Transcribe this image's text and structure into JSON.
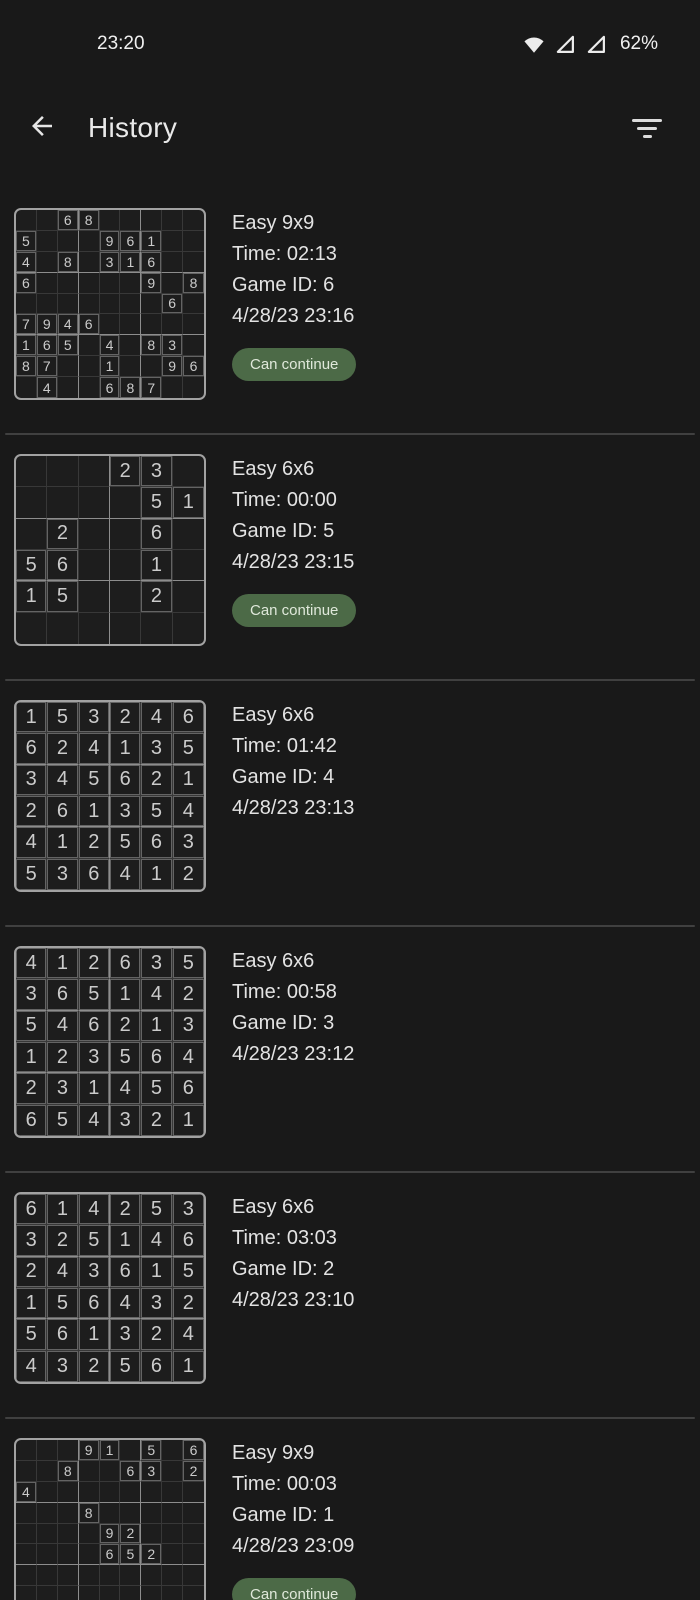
{
  "status_bar": {
    "time": "23:20",
    "battery": "62%"
  },
  "header": {
    "title": "History"
  },
  "colors": {
    "background": "#191919",
    "badge_green": "#4c6a47",
    "badge_text": "#dfe8da",
    "grid_line": "#383838",
    "grid_box_line": "#8d8d8d",
    "grid_border": "#a2a2a2",
    "text": "#e3e3e3"
  },
  "entries": [
    {
      "title": "Easy 9x9",
      "time": "Time: 02:13",
      "game_id": "Game ID: 6",
      "date": "4/28/23 23:16",
      "badge": "Can continue",
      "size": 9,
      "grid": [
        [
          "",
          "",
          "6",
          "8",
          "",
          "",
          "",
          "",
          ""
        ],
        [
          "5",
          "",
          "",
          "",
          "9",
          "6",
          "1",
          "",
          ""
        ],
        [
          "4",
          "",
          "8",
          "",
          "3",
          "1",
          "6",
          "",
          ""
        ],
        [
          "6",
          "",
          "",
          "",
          "",
          "",
          "9",
          "",
          "8"
        ],
        [
          "",
          "",
          "",
          "",
          "",
          "",
          "",
          "6",
          ""
        ],
        [
          "7",
          "9",
          "4",
          "6",
          "",
          "",
          "",
          "",
          ""
        ],
        [
          "1",
          "6",
          "5",
          "",
          "4",
          "",
          "8",
          "3",
          ""
        ],
        [
          "8",
          "7",
          "",
          "",
          "1",
          "",
          "",
          "9",
          "6"
        ],
        [
          "",
          "4",
          "",
          "",
          "6",
          "8",
          "7",
          "",
          ""
        ]
      ]
    },
    {
      "title": "Easy 6x6",
      "time": "Time: 00:00",
      "game_id": "Game ID: 5",
      "date": "4/28/23 23:15",
      "badge": "Can continue",
      "size": 6,
      "grid": [
        [
          "",
          "",
          "",
          "2",
          "3",
          ""
        ],
        [
          "",
          "",
          "",
          "",
          "5",
          "1"
        ],
        [
          "",
          "2",
          "",
          "",
          "6",
          ""
        ],
        [
          "5",
          "6",
          "",
          "",
          "1",
          ""
        ],
        [
          "1",
          "5",
          "",
          "",
          "2",
          ""
        ],
        [
          "",
          "",
          "",
          "",
          "",
          ""
        ]
      ]
    },
    {
      "title": "Easy 6x6",
      "time": "Time: 01:42",
      "game_id": "Game ID: 4",
      "date": "4/28/23 23:13",
      "badge": null,
      "size": 6,
      "grid": [
        [
          "1",
          "5",
          "3",
          "2",
          "4",
          "6"
        ],
        [
          "6",
          "2",
          "4",
          "1",
          "3",
          "5"
        ],
        [
          "3",
          "4",
          "5",
          "6",
          "2",
          "1"
        ],
        [
          "2",
          "6",
          "1",
          "3",
          "5",
          "4"
        ],
        [
          "4",
          "1",
          "2",
          "5",
          "6",
          "3"
        ],
        [
          "5",
          "3",
          "6",
          "4",
          "1",
          "2"
        ]
      ]
    },
    {
      "title": "Easy 6x6",
      "time": "Time: 00:58",
      "game_id": "Game ID: 3",
      "date": "4/28/23 23:12",
      "badge": null,
      "size": 6,
      "grid": [
        [
          "4",
          "1",
          "2",
          "6",
          "3",
          "5"
        ],
        [
          "3",
          "6",
          "5",
          "1",
          "4",
          "2"
        ],
        [
          "5",
          "4",
          "6",
          "2",
          "1",
          "3"
        ],
        [
          "1",
          "2",
          "3",
          "5",
          "6",
          "4"
        ],
        [
          "2",
          "3",
          "1",
          "4",
          "5",
          "6"
        ],
        [
          "6",
          "5",
          "4",
          "3",
          "2",
          "1"
        ]
      ]
    },
    {
      "title": "Easy 6x6",
      "time": "Time: 03:03",
      "game_id": "Game ID: 2",
      "date": "4/28/23 23:10",
      "badge": null,
      "size": 6,
      "grid": [
        [
          "6",
          "1",
          "4",
          "2",
          "5",
          "3"
        ],
        [
          "3",
          "2",
          "5",
          "1",
          "4",
          "6"
        ],
        [
          "2",
          "4",
          "3",
          "6",
          "1",
          "5"
        ],
        [
          "1",
          "5",
          "6",
          "4",
          "3",
          "2"
        ],
        [
          "5",
          "6",
          "1",
          "3",
          "2",
          "4"
        ],
        [
          "4",
          "3",
          "2",
          "5",
          "6",
          "1"
        ]
      ]
    },
    {
      "title": "Easy 9x9",
      "time": "Time: 00:03",
      "game_id": "Game ID: 1",
      "date": "4/28/23 23:09",
      "badge": "Can continue",
      "size": 9,
      "grid": [
        [
          "",
          "",
          "",
          "9",
          "1",
          "",
          "5",
          "",
          "6"
        ],
        [
          "",
          "",
          "8",
          "",
          "",
          "6",
          "3",
          "",
          "2"
        ],
        [
          "4",
          "",
          "",
          "",
          "",
          "",
          "",
          "",
          ""
        ],
        [
          "",
          "",
          "",
          "8",
          "",
          "",
          "",
          "",
          ""
        ],
        [
          "",
          "",
          "",
          "",
          "9",
          "2",
          "",
          "",
          ""
        ],
        [
          "",
          "",
          "",
          "",
          "6",
          "5",
          "2",
          "",
          ""
        ],
        [
          "",
          "",
          "",
          "",
          "",
          "",
          "",
          "",
          ""
        ],
        [
          "",
          "",
          "",
          "",
          "",
          "",
          "",
          "",
          ""
        ],
        [
          "",
          "",
          "",
          "",
          "",
          "",
          "",
          "",
          ""
        ]
      ]
    }
  ]
}
